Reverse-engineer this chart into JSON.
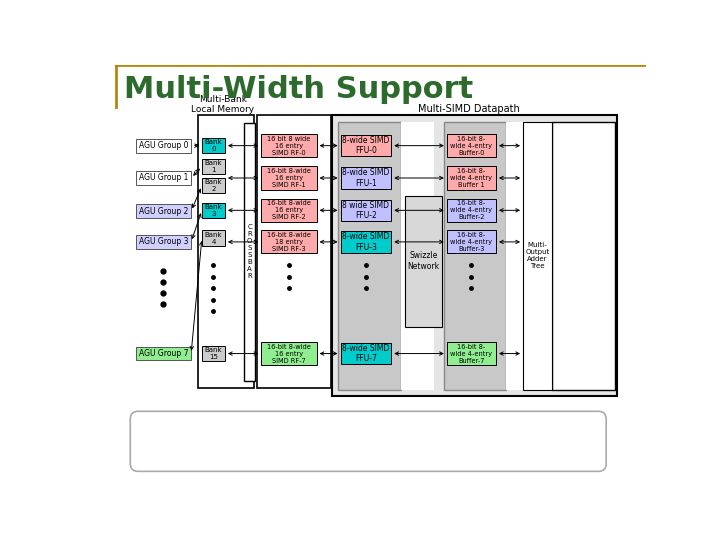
{
  "title": "Multi-Width Support",
  "title_color": "#2d6b2d",
  "title_fontsize": 22,
  "bg_color": "#ffffff",
  "subtitle_multibank": "Multi-Bank\nLocal Memory",
  "subtitle_multisimd": "Multi-SIMD Datapath",
  "agu_groups": [
    "AGU Group 0",
    "AGU Group 1",
    "AGU Group 2",
    "AGU Group 3",
    "AGU Group 7"
  ],
  "agu_colors": [
    "#ffffff",
    "#ffffff",
    "#d0d0ff",
    "#d0d0ff",
    "#90ee90"
  ],
  "banks_col1": [
    "Bank\n0",
    "Bank\n1",
    "Bank\n2",
    "Bank\n3",
    "Bank\n4",
    "Bank\n15"
  ],
  "bank_colors": [
    "#00cccc",
    "#cccccc",
    "#cccccc",
    "#00cccc",
    "#cccccc",
    "#cccccc"
  ],
  "simd_rf_labels": [
    "16 bit 8 wide\n16 entry\nSIMD RF-0",
    "16-bit 8-wide\n16 entry\nSIMD RF-1",
    "16-bit 8-wide\n16 entry\nSIMD RF-2",
    "16-bit 8-wide\n18 entry\nSIMD RF-3",
    "16-bit 8-wide\n16 entry\nSIMD RF-7"
  ],
  "simd_rf_colors": [
    "#ffaaaa",
    "#ffaaaa",
    "#ffaaaa",
    "#ffaaaa",
    "#90ee90"
  ],
  "ffu_labels": [
    "8-wide SIMD\nFFU-0",
    "8-wide SIMD\nFFU-1",
    "8 wide SIMD\nFFU-2",
    "8-wide SIMD\nFFU-3",
    "8-wide SIMD\nFFU-7"
  ],
  "ffu_colors": [
    "#ffaaaa",
    "#c0c0ff",
    "#c0c0ff",
    "#00cccc",
    "#00cccc"
  ],
  "buffer_labels": [
    "16-bit 8-\nwide 4-entry\nBuffer-0",
    "16-bit 8-\nwide 4-entry\nBuffer 1",
    "16-bit 8-\nwide 4-entry\nBuffer-2",
    "16-bit 8-\nwide 4-entry\nBuffer-3",
    "16-bit 8-\nwide 4-entry\nBuffer-7"
  ],
  "buffer_colors": [
    "#ffaaaa",
    "#ffaaaa",
    "#c0c0ff",
    "#c0c0ff",
    "#90ee90"
  ],
  "crossbar_label": "C\nR\nO\nS\nS\nB\nA\nR",
  "swizzle_label": "Swizzle\nNetwork",
  "multioutput_label": "Multi-\nOutput\nAdder\nTree"
}
